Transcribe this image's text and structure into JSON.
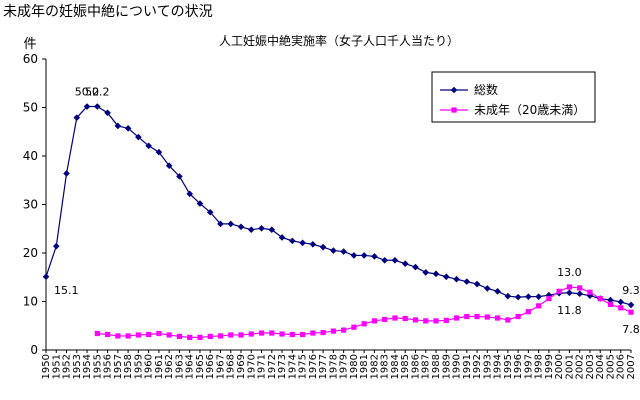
{
  "page": {
    "title": "未成年の妊娠中絶についての状況"
  },
  "chart_data": {
    "type": "line",
    "title": "人工妊娠中絶実施率（女子人口千人当たり）",
    "ylabel": "件",
    "xlabel": "",
    "ylim": [
      0,
      60
    ],
    "yticks": [
      0,
      10,
      20,
      30,
      40,
      50,
      60
    ],
    "grid": false,
    "legend": "top-right",
    "x": [
      1950,
      1951,
      1952,
      1953,
      1954,
      1955,
      1956,
      1957,
      1958,
      1959,
      1960,
      1961,
      1962,
      1963,
      1964,
      1965,
      1966,
      1967,
      1968,
      1969,
      1970,
      1971,
      1972,
      1973,
      1974,
      1975,
      1976,
      1977,
      1978,
      1979,
      1980,
      1981,
      1982,
      1983,
      1984,
      1985,
      1986,
      1987,
      1988,
      1989,
      1990,
      1991,
      1992,
      1993,
      1994,
      1995,
      1996,
      1997,
      1998,
      1999,
      2000,
      2001,
      2002,
      2003,
      2004,
      2005,
      2006,
      2007
    ],
    "series": [
      {
        "name": "総数",
        "color": "#000080",
        "marker": "diamond",
        "values": [
          15.1,
          21.4,
          36.4,
          47.9,
          50.2,
          50.2,
          48.9,
          46.2,
          45.7,
          43.9,
          42.1,
          40.8,
          38.0,
          35.8,
          32.2,
          30.2,
          28.4,
          26.0,
          26.0,
          25.4,
          24.8,
          25.1,
          24.8,
          23.2,
          22.5,
          22.1,
          21.8,
          21.2,
          20.5,
          20.3,
          19.5,
          19.5,
          19.3,
          18.5,
          18.5,
          17.8,
          17.1,
          16.0,
          15.7,
          15.1,
          14.6,
          14.1,
          13.6,
          12.7,
          12.1,
          11.1,
          10.9,
          11.0,
          11.0,
          11.3,
          11.7,
          11.8,
          11.6,
          11.2,
          10.6,
          10.3,
          9.9,
          9.3
        ]
      },
      {
        "name": "未成年（20歳未満）",
        "color": "#ff00ff",
        "marker": "square",
        "values": [
          null,
          null,
          null,
          null,
          null,
          3.4,
          3.2,
          2.9,
          2.9,
          3.1,
          3.2,
          3.4,
          3.1,
          2.8,
          2.6,
          2.6,
          2.8,
          2.9,
          3.1,
          3.1,
          3.3,
          3.5,
          3.5,
          3.3,
          3.2,
          3.2,
          3.5,
          3.6,
          3.9,
          4.1,
          4.7,
          5.4,
          6.0,
          6.3,
          6.6,
          6.5,
          6.2,
          6.0,
          6.0,
          6.1,
          6.6,
          6.9,
          6.9,
          6.8,
          6.6,
          6.2,
          6.9,
          7.9,
          9.1,
          10.6,
          12.1,
          13.0,
          12.8,
          11.9,
          10.6,
          9.4,
          8.7,
          7.8
        ]
      }
    ],
    "annotations": [
      {
        "series": 0,
        "index": 4,
        "text": "50.2",
        "pos": "above"
      },
      {
        "series": 0,
        "index": 5,
        "text": "50.2",
        "pos": "above"
      },
      {
        "series": 0,
        "index": 0,
        "text": "15.1",
        "pos": "right"
      },
      {
        "series": 1,
        "index": 51,
        "text": "13.0",
        "pos": "above"
      },
      {
        "series": 0,
        "index": 51,
        "text": "11.8",
        "pos": "below"
      },
      {
        "series": 0,
        "index": 57,
        "text": "9.3",
        "pos": "above"
      },
      {
        "series": 1,
        "index": 57,
        "text": "7.8",
        "pos": "below"
      }
    ]
  }
}
